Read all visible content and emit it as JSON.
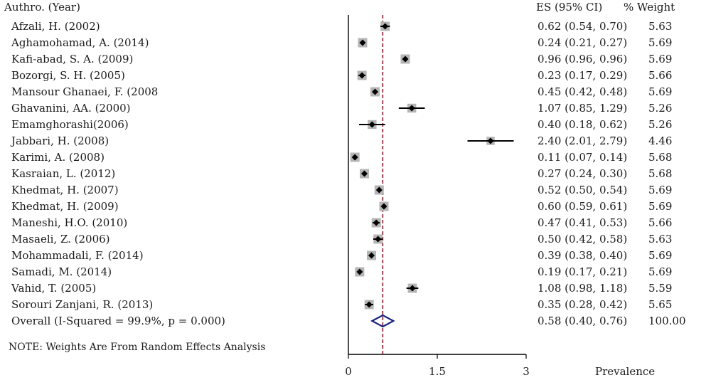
{
  "chart_data": {
    "type": "forest",
    "headers": {
      "study": "Authro. (Year)",
      "es": "ES (95% CI)",
      "weight": "% Weight"
    },
    "xlabel": "Prevalence",
    "xticks": [
      "0",
      "1.5",
      "3"
    ],
    "xlim": [
      0,
      3
    ],
    "pooled_line": 0.58,
    "studies": [
      {
        "label": "Afzali, H. (2002)",
        "es": 0.62,
        "lo": 0.54,
        "hi": 0.7,
        "es_text": "0.62 (0.54, 0.70)",
        "weight": "5.63"
      },
      {
        "label": "Aghamohamad, A. (2014)",
        "es": 0.24,
        "lo": 0.21,
        "hi": 0.27,
        "es_text": "0.24 (0.21, 0.27)",
        "weight": "5.69"
      },
      {
        "label": "Kafi-abad, S. A. (2009)",
        "es": 0.96,
        "lo": 0.96,
        "hi": 0.96,
        "es_text": "0.96 (0.96, 0.96)",
        "weight": "5.69"
      },
      {
        "label": "Bozorgi, S. H. (2005)",
        "es": 0.23,
        "lo": 0.17,
        "hi": 0.29,
        "es_text": "0.23 (0.17, 0.29)",
        "weight": "5.66"
      },
      {
        "label": "Mansour Ghanaei, F. (2008",
        "es": 0.45,
        "lo": 0.42,
        "hi": 0.48,
        "es_text": "0.45 (0.42, 0.48)",
        "weight": "5.69"
      },
      {
        "label": "Ghavanini, AA. (2000)",
        "es": 1.07,
        "lo": 0.85,
        "hi": 1.29,
        "es_text": "1.07 (0.85, 1.29)",
        "weight": "5.26"
      },
      {
        "label": "Emamghorashi(2006)",
        "es": 0.4,
        "lo": 0.18,
        "hi": 0.62,
        "es_text": "0.40 (0.18, 0.62)",
        "weight": "5.26"
      },
      {
        "label": "Jabbari, H. (2008)",
        "es": 2.4,
        "lo": 2.01,
        "hi": 2.79,
        "es_text": "2.40 (2.01, 2.79)",
        "weight": "4.46"
      },
      {
        "label": "Karimi, A. (2008)",
        "es": 0.11,
        "lo": 0.07,
        "hi": 0.14,
        "es_text": "0.11 (0.07, 0.14)",
        "weight": "5.68"
      },
      {
        "label": "Kasraian, L. (2012)",
        "es": 0.27,
        "lo": 0.24,
        "hi": 0.3,
        "es_text": "0.27 (0.24, 0.30)",
        "weight": "5.68"
      },
      {
        "label": "Khedmat, H. (2007)",
        "es": 0.52,
        "lo": 0.5,
        "hi": 0.54,
        "es_text": "0.52 (0.50, 0.54)",
        "weight": "5.69"
      },
      {
        "label": "Khedmat, H. (2009)",
        "es": 0.6,
        "lo": 0.59,
        "hi": 0.61,
        "es_text": "0.60 (0.59, 0.61)",
        "weight": "5.69"
      },
      {
        "label": "Maneshi, H.O. (2010)",
        "es": 0.47,
        "lo": 0.41,
        "hi": 0.53,
        "es_text": "0.47 (0.41, 0.53)",
        "weight": "5.66"
      },
      {
        "label": "Masaeli, Z. (2006)",
        "es": 0.5,
        "lo": 0.42,
        "hi": 0.58,
        "es_text": "0.50 (0.42, 0.58)",
        "weight": "5.63"
      },
      {
        "label": "Mohammadali, F. (2014)",
        "es": 0.39,
        "lo": 0.38,
        "hi": 0.4,
        "es_text": "0.39 (0.38, 0.40)",
        "weight": "5.69"
      },
      {
        "label": "Samadi, M. (2014)",
        "es": 0.19,
        "lo": 0.17,
        "hi": 0.21,
        "es_text": "0.19 (0.17, 0.21)",
        "weight": "5.69"
      },
      {
        "label": "Vahid, T. (2005)",
        "es": 1.08,
        "lo": 0.98,
        "hi": 1.18,
        "es_text": "1.08 (0.98, 1.18)",
        "weight": "5.59"
      },
      {
        "label": "Sorouri Zanjani, R. (2013)",
        "es": 0.35,
        "lo": 0.28,
        "hi": 0.42,
        "es_text": "0.35 (0.28, 0.42)",
        "weight": "5.65"
      }
    ],
    "overall": {
      "label": "Overall  (I-Squared = 99.9%, p = 0.000)",
      "es": 0.58,
      "lo": 0.4,
      "hi": 0.76,
      "es_text": "0.58 (0.40, 0.76)",
      "weight": "100.00"
    },
    "note": "NOTE: Weights Are From Random Effects Analysis",
    "colors": {
      "marker": "#000000",
      "weight_box": "#b5b5b5",
      "pooled_line": "#8b1a2b",
      "diamond": "#1a237e",
      "axis": "#000000"
    }
  }
}
